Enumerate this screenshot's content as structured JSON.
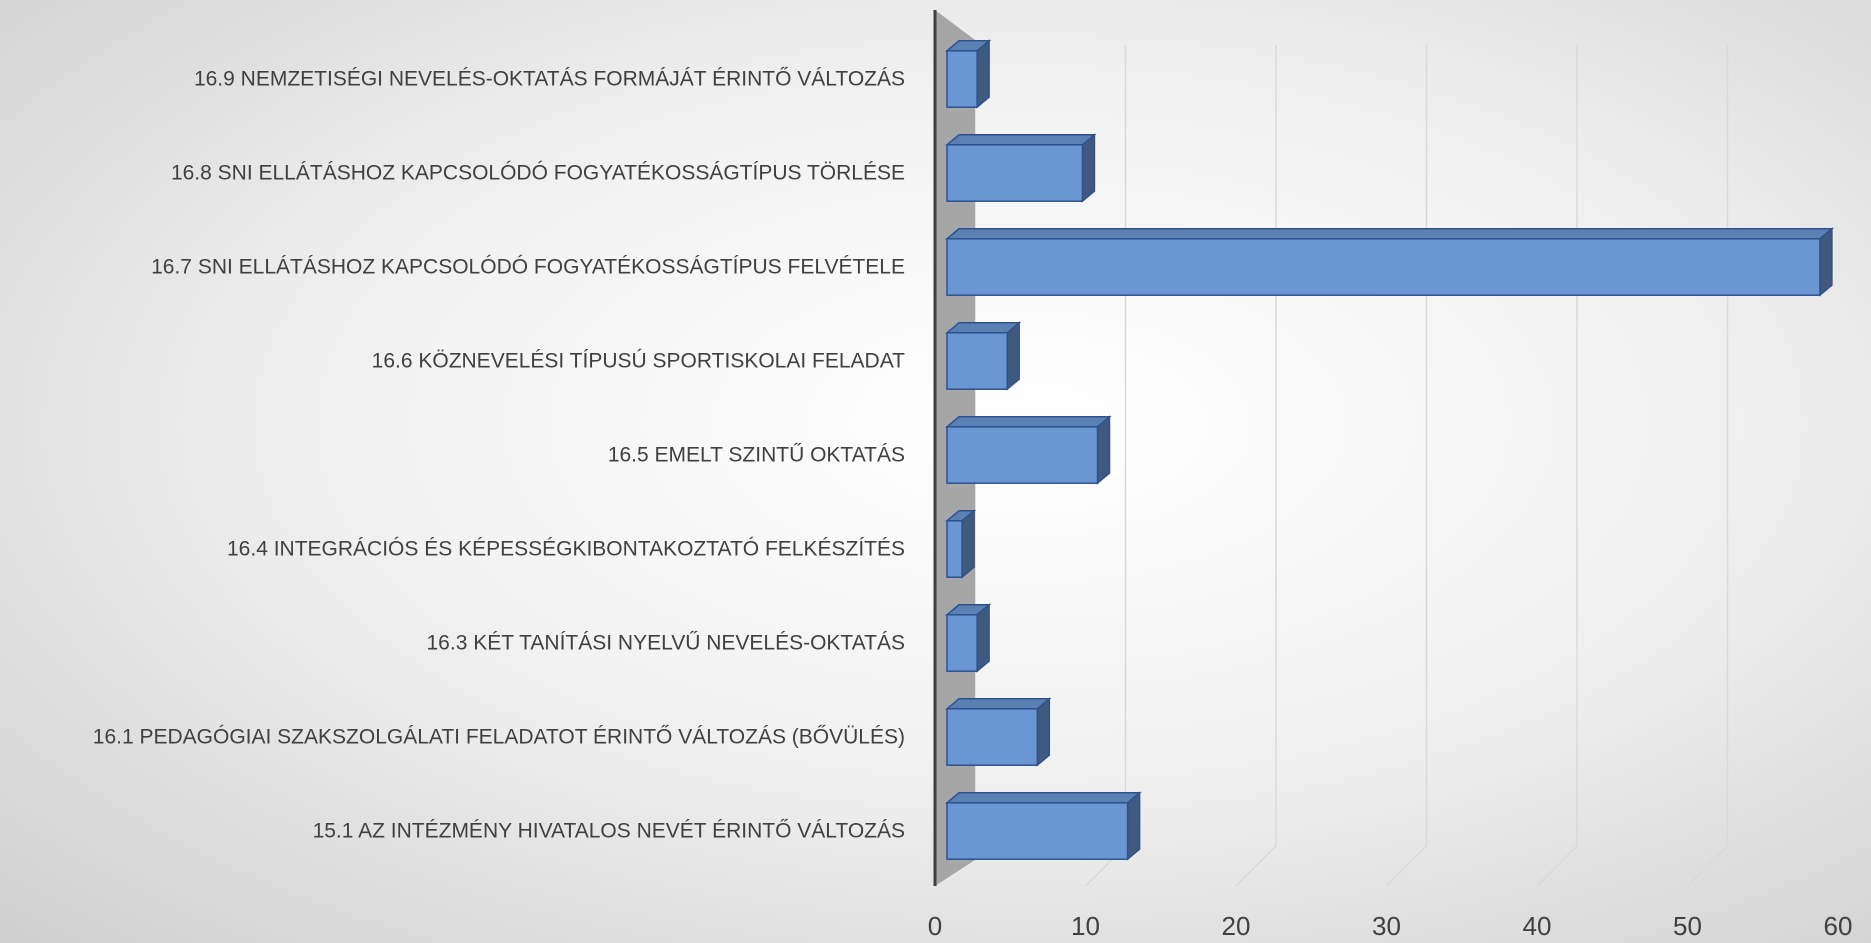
{
  "chart_data": {
    "type": "bar3d_horizontal",
    "categories": [
      "15.1 AZ INTÉZMÉNY HIVATALOS NEVÉT ÉRINTŐ VÁLTOZÁS",
      "16.1 PEDAGÓGIAI SZAKSZOLGÁLATI FELADATOT ÉRINTŐ VÁLTOZÁS (BŐVÜLÉS)",
      "16.3 KÉT TANÍTÁSI NYELVŰ NEVELÉS-OKTATÁS",
      "16.4 INTEGRÁCIÓS ÉS KÉPESSÉGKIBONTAKOZTATÓ FELKÉSZÍTÉS",
      "16.5 EMELT SZINTŰ OKTATÁS",
      "16.6 KÖZNEVELÉSI TÍPUSÚ SPORTISKOLAI FELADAT",
      "16.7 SNI ELLÁTÁSHOZ KAPCSOLÓDÓ FOGYATÉKOSSÁGTÍPUS FELVÉTELE",
      "16.8 SNI ELLÁTÁSHOZ KAPCSOLÓDÓ FOGYATÉKOSSÁGTÍPUS TÖRLÉSE",
      "16.9 NEMZETISÉGI NEVELÉS-OKTATÁS FORMÁJÁT ÉRINTŐ VÁLTOZÁS"
    ],
    "values": [
      12,
      6,
      2,
      1,
      10,
      4,
      58,
      9,
      2
    ],
    "color": "#6a96d4",
    "xlim": [
      0,
      60
    ],
    "xticks": [
      0,
      10,
      20,
      30,
      40,
      50,
      60
    ],
    "grid": true
  }
}
